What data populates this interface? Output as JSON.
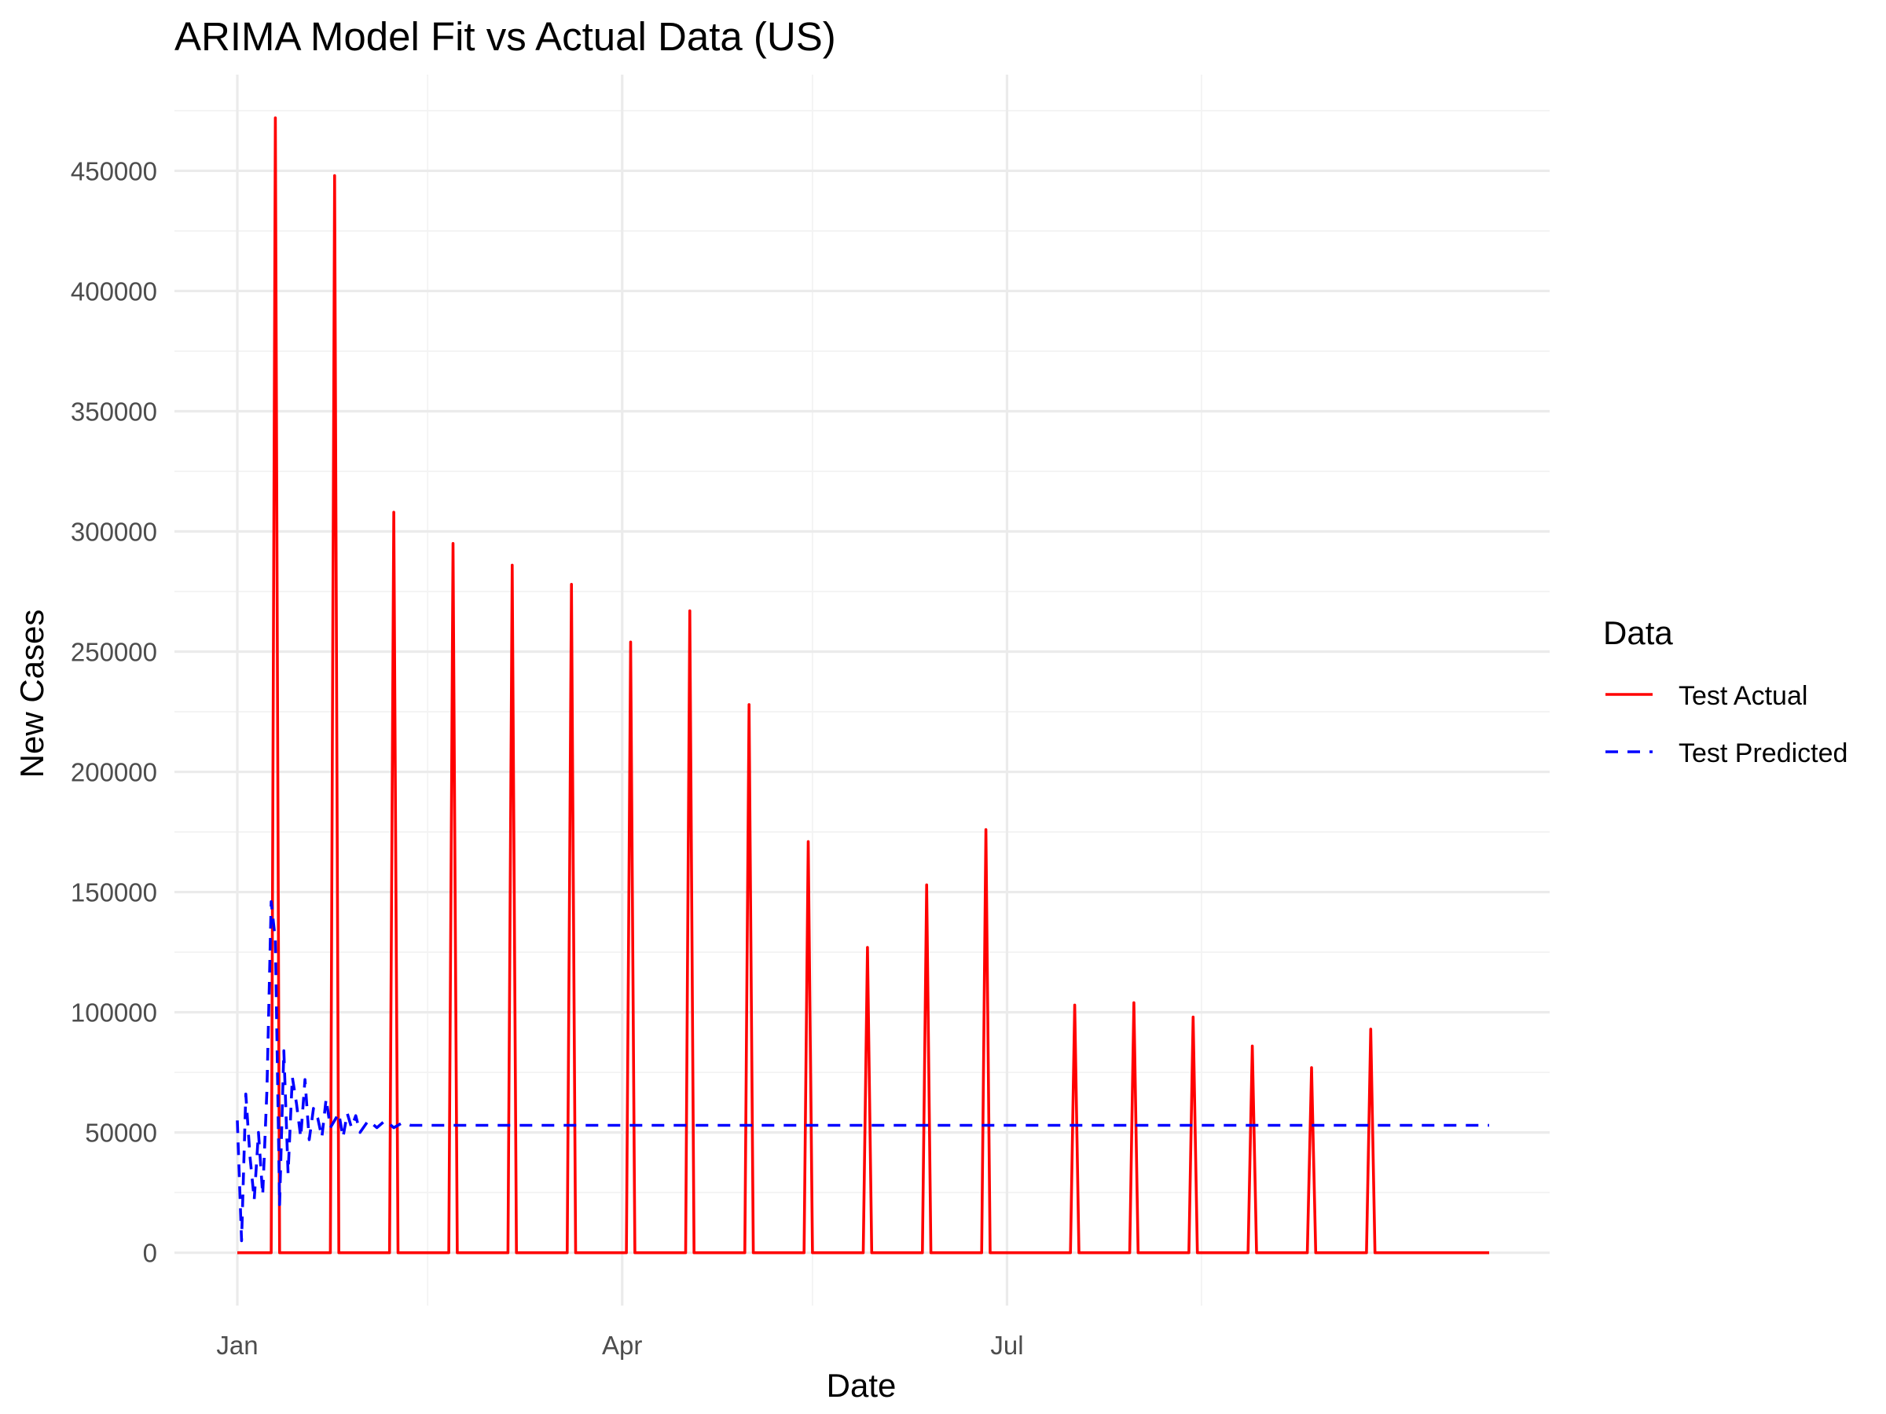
{
  "chart_data": {
    "type": "line",
    "title": "ARIMA Model Fit vs Actual Data (US)",
    "xlabel": "Date",
    "ylabel": "New Cases",
    "x_axis_type": "date",
    "xlim": [
      "2020-01-01",
      "2020-10-23"
    ],
    "ylim": [
      -22000,
      490000
    ],
    "x_ticks": [
      {
        "date": "2020-01-01",
        "label": "Jan"
      },
      {
        "date": "2020-04-01",
        "label": "Apr"
      },
      {
        "date": "2020-07-01",
        "label": "Jul"
      }
    ],
    "x_minor_ticks": [
      "2020-02-15",
      "2020-05-16",
      "2020-08-16"
    ],
    "y_ticks": [
      0,
      50000,
      100000,
      150000,
      200000,
      250000,
      300000,
      350000,
      400000,
      450000
    ],
    "grid": true,
    "legend": {
      "title": "Data",
      "position": "right",
      "entries": [
        {
          "label": "Test Actual",
          "color": "#ff0000",
          "linestyle": "solid"
        },
        {
          "label": "Test Predicted",
          "color": "#0000ff",
          "linestyle": "dashed"
        }
      ]
    },
    "series": [
      {
        "name": "Test Actual",
        "color": "#ff0000",
        "linestyle": "solid",
        "points": [
          [
            "2020-01-01",
            0
          ],
          [
            "2020-01-09",
            0
          ],
          [
            "2020-01-10",
            472000
          ],
          [
            "2020-01-11",
            0
          ],
          [
            "2020-01-23",
            0
          ],
          [
            "2020-01-24",
            448000
          ],
          [
            "2020-01-25",
            0
          ],
          [
            "2020-02-06",
            0
          ],
          [
            "2020-02-07",
            308000
          ],
          [
            "2020-02-08",
            0
          ],
          [
            "2020-02-20",
            0
          ],
          [
            "2020-02-21",
            295000
          ],
          [
            "2020-02-22",
            0
          ],
          [
            "2020-03-05",
            0
          ],
          [
            "2020-03-06",
            286000
          ],
          [
            "2020-03-07",
            0
          ],
          [
            "2020-03-19",
            0
          ],
          [
            "2020-03-20",
            278000
          ],
          [
            "2020-03-21",
            0
          ],
          [
            "2020-04-02",
            0
          ],
          [
            "2020-04-03",
            254000
          ],
          [
            "2020-04-04",
            0
          ],
          [
            "2020-04-16",
            0
          ],
          [
            "2020-04-17",
            267000
          ],
          [
            "2020-04-18",
            0
          ],
          [
            "2020-04-30",
            0
          ],
          [
            "2020-05-01",
            228000
          ],
          [
            "2020-05-02",
            0
          ],
          [
            "2020-05-14",
            0
          ],
          [
            "2020-05-15",
            171000
          ],
          [
            "2020-05-16",
            0
          ],
          [
            "2020-05-28",
            0
          ],
          [
            "2020-05-29",
            127000
          ],
          [
            "2020-05-30",
            0
          ],
          [
            "2020-06-11",
            0
          ],
          [
            "2020-06-12",
            153000
          ],
          [
            "2020-06-13",
            0
          ],
          [
            "2020-06-25",
            0
          ],
          [
            "2020-06-26",
            176000
          ],
          [
            "2020-06-27",
            0
          ],
          [
            "2020-07-16",
            0
          ],
          [
            "2020-07-17",
            103000
          ],
          [
            "2020-07-18",
            0
          ],
          [
            "2020-07-30",
            0
          ],
          [
            "2020-07-31",
            104000
          ],
          [
            "2020-08-01",
            0
          ],
          [
            "2020-08-13",
            0
          ],
          [
            "2020-08-14",
            98000
          ],
          [
            "2020-08-15",
            0
          ],
          [
            "2020-08-27",
            0
          ],
          [
            "2020-08-28",
            86000
          ],
          [
            "2020-08-29",
            0
          ],
          [
            "2020-09-10",
            0
          ],
          [
            "2020-09-11",
            77000
          ],
          [
            "2020-09-12",
            0
          ],
          [
            "2020-09-24",
            0
          ],
          [
            "2020-09-25",
            93000
          ],
          [
            "2020-09-26",
            0
          ],
          [
            "2020-10-23",
            0
          ]
        ]
      },
      {
        "name": "Test Predicted",
        "color": "#0000ff",
        "linestyle": "dashed",
        "points": [
          [
            "2020-01-01",
            55000
          ],
          [
            "2020-01-02",
            5000
          ],
          [
            "2020-01-03",
            66000
          ],
          [
            "2020-01-04",
            40000
          ],
          [
            "2020-01-05",
            22000
          ],
          [
            "2020-01-06",
            50000
          ],
          [
            "2020-01-07",
            24000
          ],
          [
            "2020-01-08",
            68000
          ],
          [
            "2020-01-09",
            146000
          ],
          [
            "2020-01-10",
            130000
          ],
          [
            "2020-01-11",
            20000
          ],
          [
            "2020-01-12",
            84000
          ],
          [
            "2020-01-13",
            33000
          ],
          [
            "2020-01-14",
            73000
          ],
          [
            "2020-01-15",
            62000
          ],
          [
            "2020-01-16",
            48000
          ],
          [
            "2020-01-17",
            72000
          ],
          [
            "2020-01-18",
            47000
          ],
          [
            "2020-01-19",
            60000
          ],
          [
            "2020-01-20",
            56000
          ],
          [
            "2020-01-21",
            48000
          ],
          [
            "2020-01-22",
            64000
          ],
          [
            "2020-01-23",
            52000
          ],
          [
            "2020-01-24",
            55000
          ],
          [
            "2020-01-25",
            58000
          ],
          [
            "2020-01-26",
            48000
          ],
          [
            "2020-01-27",
            58000
          ],
          [
            "2020-01-28",
            52000
          ],
          [
            "2020-01-29",
            57000
          ],
          [
            "2020-01-30",
            50000
          ],
          [
            "2020-02-01",
            55000
          ],
          [
            "2020-02-03",
            52000
          ],
          [
            "2020-02-05",
            55000
          ],
          [
            "2020-02-07",
            52000
          ],
          [
            "2020-02-09",
            54000
          ],
          [
            "2020-02-11",
            53000
          ],
          [
            "2020-02-15",
            53000
          ],
          [
            "2020-10-23",
            53000
          ]
        ]
      }
    ]
  }
}
